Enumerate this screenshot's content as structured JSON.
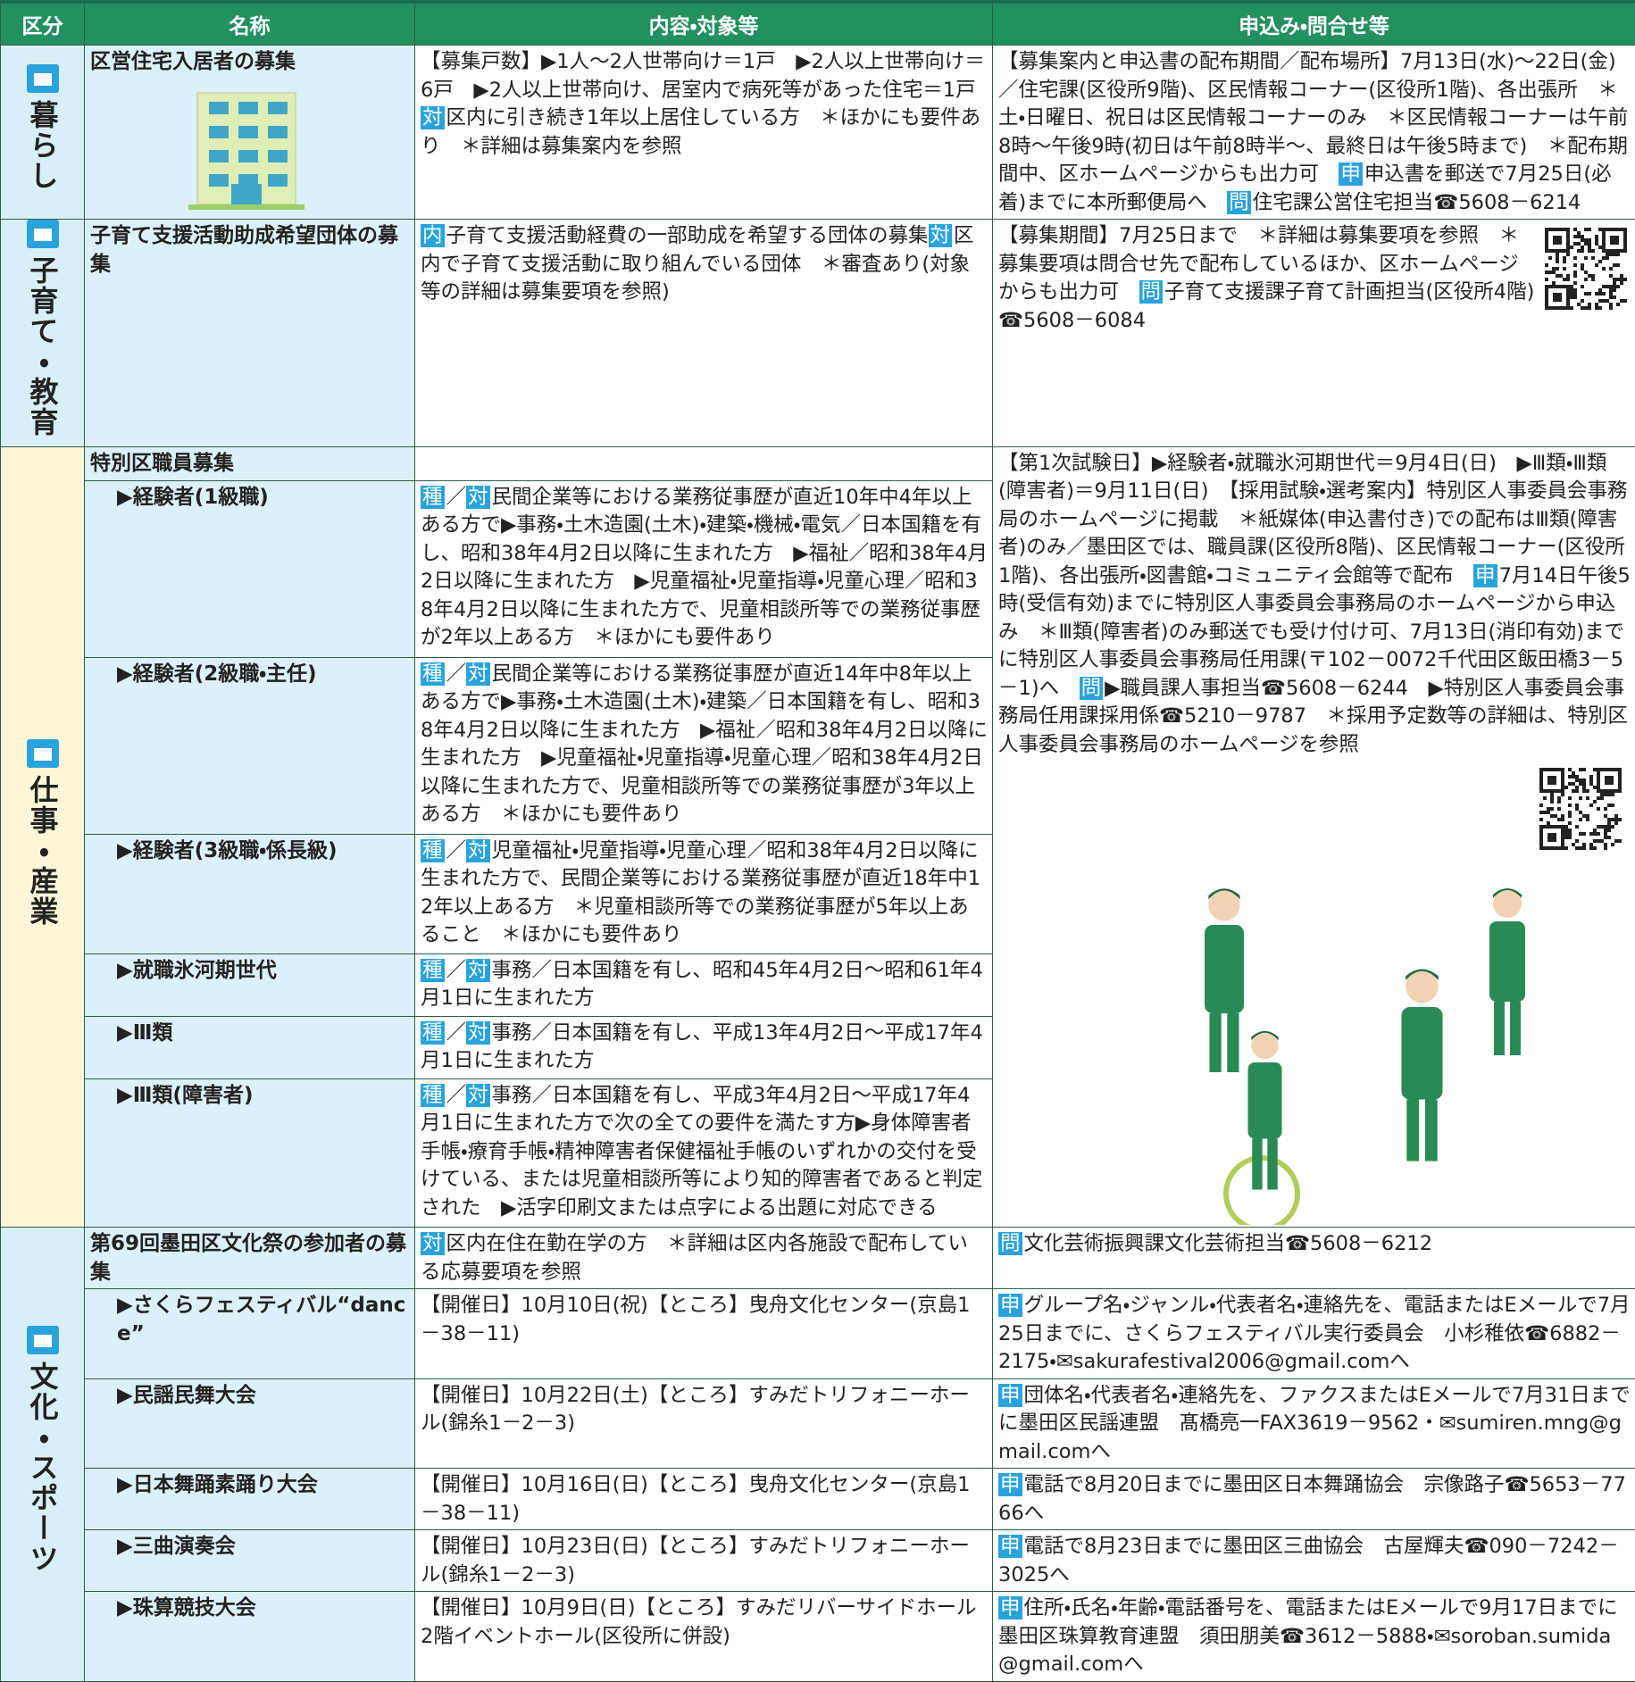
{
  "header": [
    "区分",
    "名称",
    "内容・対象等",
    "申込み・問合せ等"
  ],
  "sections": [
    {
      "category": "暮らし",
      "rows": [
        {
          "name": "区営住宅入居者の募集",
          "content": [
            "【募集戸数】▶1人～2人世帯向け＝1戸　▶2人以上世帯向け＝6戸　▶2人以上世帯向け、居室内で病死等があった住宅＝1戸　",
            {
              "tag": "対"
            },
            "区内に引き続き1年以上居住している方　＊ほかにも要件あり　＊詳細は募集案内を参照"
          ],
          "contact": [
            "【募集案内と申込書の配布期間／配布場所】7月13日(水)～22日(金)／住宅課(区役所9階)、区民情報コーナー(区役所1階)、各出張所　＊土・日曜日、祝日は区民情報コーナーのみ　＊区民情報コーナーは午前8時～午後9時(初日は午前8時半～、最終日は午後5時まで)　＊配布期間中、区ホームページからも出力可　",
            {
              "tag": "申"
            },
            "申込書を郵送で7月25日(必着)までに本所郵便局へ　",
            {
              "tag": "問"
            },
            "住宅課公営住宅担当☎5608－6214"
          ]
        }
      ]
    },
    {
      "category": "子育て・教育",
      "rows": [
        {
          "name": "子育て支援活動助成希望団体の募集",
          "content": [
            {
              "tag": "内"
            },
            "子育て支援活動経費の一部助成を希望する団体の募集",
            {
              "tag": "対"
            },
            "区内で子育て支援活動に取り組んでいる団体　＊審査あり(対象等の詳細は募集要項を参照)"
          ],
          "contact": [
            "【募集期間】7月25日まで　＊詳細は募集要項を参照　＊募集要項は問合せ先で配布しているほか、区ホームページからも出力可　",
            {
              "tag": "問"
            },
            "子育て支援課子育て計画担当(区役所4階)☎5608－6084"
          ]
        }
      ]
    },
    {
      "category": "仕事・産業",
      "rows": [
        {
          "name": "特別区職員募集",
          "contact": [
            "【第1次試験日】▶経験者・就職氷河期世代＝9月4日(日)　▶Ⅲ類・Ⅲ類(障害者)＝9月11日(日)　【採用試験・選考案内】特別区人事委員会事務局のホームページに掲載　＊紙媒体(申込書付き)での配布はⅢ類(障害者)のみ／墨田区では、職員課(区役所8階)、区民情報コーナー(区役所1階)、各出張所・図書館・コミュニティ会館等で配布　",
            {
              "tag": "申"
            },
            "7月14日午後5時(受信有効)までに特別区人事委員会事務局のホームページから申込み　＊Ⅲ類(障害者)のみ郵送でも受け付け可、7月13日(消印有効)までに特別区人事委員会事務局任用課(〒102－0072千代田区飯田橋3－5－1)へ　",
            {
              "tag": "問"
            },
            "▶職員課人事担当☎5608－6244　▶特別区人事委員会事務局任用課採用係☎5210－9787　＊採用予定数等の詳細は、特別区人事委員会事務局のホームページを参照"
          ]
        },
        {
          "name": "▶経験者(1級職)",
          "content": [
            {
              "tag": "種"
            },
            "／",
            {
              "tag": "対"
            },
            "民間企業等における業務従事歴が直近10年中4年以上ある方で▶事務・土木造園(土木)・建築・機械・電気／日本国籍を有し、昭和38年4月2日以降に生まれた方　▶福祉／昭和38年4月2日以降に生まれた方　▶児童福祉・児童指導・児童心理／昭和38年4月2日以降に生まれた方で、児童相談所等での業務従事歴が2年以上ある方　＊ほかにも要件あり"
          ]
        },
        {
          "name": "▶経験者(2級職・主任)",
          "content": [
            {
              "tag": "種"
            },
            "／",
            {
              "tag": "対"
            },
            "民間企業等における業務従事歴が直近14年中8年以上ある方で▶事務・土木造園(土木)・建築／日本国籍を有し、昭和38年4月2日以降に生まれた方　▶福祉／昭和38年4月2日以降に生まれた方　▶児童福祉・児童指導・児童心理／昭和38年4月2日以降に生まれた方で、児童相談所等での業務従事歴が3年以上ある方　＊ほかにも要件あり"
          ]
        },
        {
          "name": "▶経験者(3級職・係長級)",
          "content": [
            {
              "tag": "種"
            },
            "／",
            {
              "tag": "対"
            },
            "児童福祉・児童指導・児童心理／昭和38年4月2日以降に生まれた方で、民間企業等における業務従事歴が直近18年中12年以上ある方　＊児童相談所等での業務従事歴が5年以上あること　＊ほかにも要件あり"
          ]
        },
        {
          "name": "▶就職氷河期世代",
          "content": [
            {
              "tag": "種"
            },
            "／",
            {
              "tag": "対"
            },
            "事務／日本国籍を有し、昭和45年4月2日～昭和61年4月1日に生まれた方"
          ]
        },
        {
          "name": "▶Ⅲ類",
          "content": [
            {
              "tag": "種"
            },
            "／",
            {
              "tag": "対"
            },
            "事務／日本国籍を有し、平成13年4月2日～平成17年4月1日に生まれた方"
          ]
        },
        {
          "name": "▶Ⅲ類(障害者)",
          "content": [
            {
              "tag": "種"
            },
            "／",
            {
              "tag": "対"
            },
            "事務／日本国籍を有し、平成3年4月2日～平成17年4月1日に生まれた方で次の全ての要件を満たす方▶身体障害者手帳・療育手帳・精神障害者保健福祉手帳のいずれかの交付を受けている、または児童相談所等により知的障害者であると判定された　▶活字印刷文または点字による出題に対応できる"
          ]
        }
      ]
    },
    {
      "category": "文化・スポーツ",
      "rows": [
        {
          "name": "第69回墨田区文化祭の参加者の募集",
          "content": [
            {
              "tag": "対"
            },
            "区内在住在勤在学の方　＊詳細は区内各施設で配布している応募要項を参照"
          ],
          "contact": [
            {
              "tag": "問"
            },
            "文化芸術振興課文化芸術担当☎5608－6212"
          ]
        },
        {
          "name": "▶さくらフェスティバル“dance”",
          "content": [
            "【開催日】10月10日(祝)【ところ】曳舟文化センター(京島1－38－11)"
          ],
          "contact": [
            {
              "tag": "申"
            },
            "グループ名・ジャンル・代表者名・連絡先を、電話またはEメールで7月25日までに、さくらフェスティバル実行委員会　小杉稚依☎6882－2175・✉sakurafestival2006@gmail.comへ"
          ]
        },
        {
          "name": "▶民謡民舞大会",
          "content": [
            "【開催日】10月22日(土)【ところ】すみだトリフォニーホール(錦糸1－2－3)"
          ],
          "contact": [
            {
              "tag": "申"
            },
            "団体名・代表者名・連絡先を、ファクスまたはEメールで7月31日までに墨田区民謡連盟　髙橋亮一FAX3619－9562・✉sumiren.mng@gmail.comへ"
          ]
        },
        {
          "name": "▶日本舞踊素踊り大会",
          "content": [
            "【開催日】10月16日(日)【ところ】曳舟文化センター(京島1－38－11)"
          ],
          "contact": [
            {
              "tag": "申"
            },
            "電話で8月20日までに墨田区日本舞踊協会　宗像路子☎5653－7766へ"
          ]
        },
        {
          "name": "▶三曲演奏会",
          "content": [
            "【開催日】10月23日(日)【ところ】すみだトリフォニーホール(錦糸1－2－3)"
          ],
          "contact": [
            {
              "tag": "申"
            },
            "電話で8月23日までに墨田区三曲協会　古屋輝夫☎090－7242－3025へ"
          ]
        },
        {
          "name": "▶珠算競技大会",
          "content": [
            "【開催日】10月9日(日)【ところ】すみだリバーサイドホール2階イベントホール(区役所に併設)"
          ],
          "contact": [
            {
              "tag": "申"
            },
            "住所・氏名・年齢・電話番号を、電話またはEメールで9月17日までに墨田区珠算教育連盟　須田朋美☎3612－5888・✉soroban.sumida@gmail.comへ"
          ]
        }
      ]
    }
  ]
}
